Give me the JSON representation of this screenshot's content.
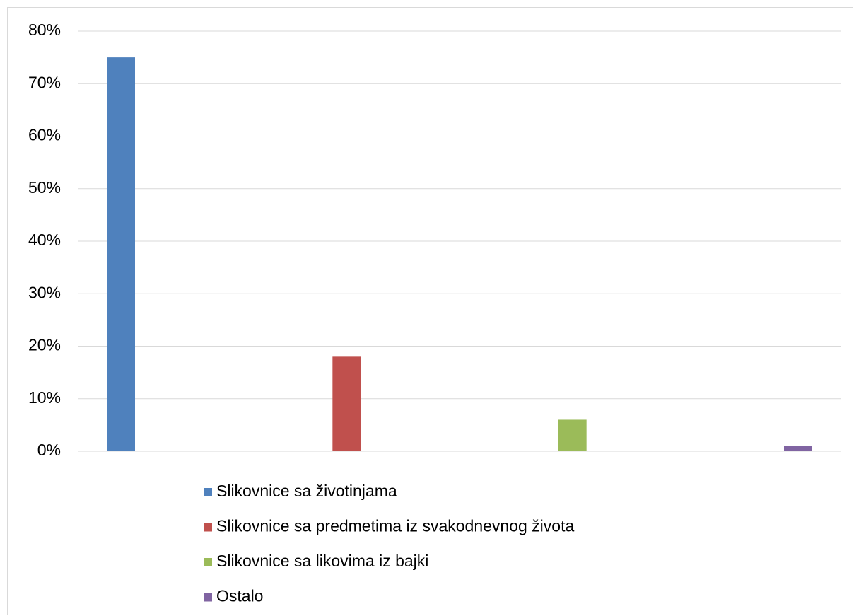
{
  "chart_data": {
    "type": "bar",
    "series": [
      {
        "name": "Slikovnice sa životinjama",
        "color": "#4f81bd",
        "values": [
          75
        ]
      },
      {
        "name": "Slikovnice sa predmetima iz svakodnevnog života",
        "color": "#c0504d",
        "values": [
          18
        ]
      },
      {
        "name": "Slikovnice sa likovima iz bajki",
        "color": "#9bbb59",
        "values": [
          6
        ]
      },
      {
        "name": "Ostalo",
        "color": "#8064a2",
        "values": [
          1
        ]
      }
    ],
    "ylim": [
      0,
      80
    ],
    "yticks": [
      {
        "value": 0,
        "label": "0%"
      },
      {
        "value": 10,
        "label": "10%"
      },
      {
        "value": 20,
        "label": "20%"
      },
      {
        "value": 30,
        "label": "30%"
      },
      {
        "value": 40,
        "label": "40%"
      },
      {
        "value": 50,
        "label": "50%"
      },
      {
        "value": 60,
        "label": "60%"
      },
      {
        "value": 70,
        "label": "70%"
      },
      {
        "value": 80,
        "label": "80%"
      }
    ],
    "grid": true,
    "legend": "bottom"
  }
}
